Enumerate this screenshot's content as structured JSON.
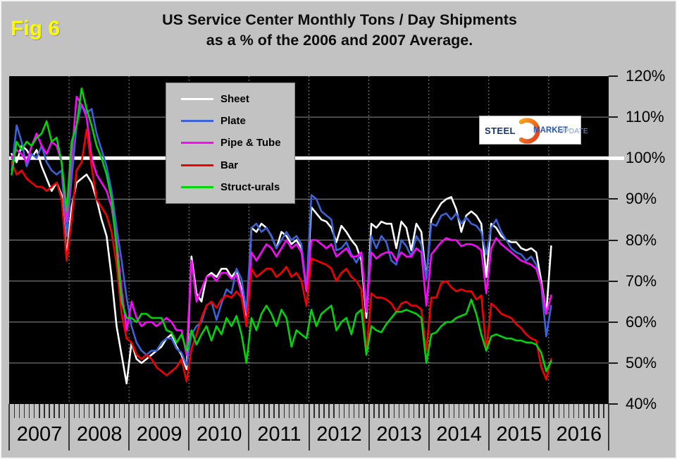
{
  "figure": {
    "fig_label": "Fig 6",
    "title_line1": "US Service Center Monthly Tons / Day Shipments",
    "title_line2": "as a % of the 2006 and 2007 Average."
  },
  "logo": {
    "word1": "STEEL",
    "word2": "MARKET",
    "word3": "UPDATE"
  },
  "chart_data": {
    "type": "line",
    "title": "US Service Center Monthly Tons / Day Shipments as a % of the 2006 and 2007 Average.",
    "legend_position": "top-left",
    "plot_background": "#000000",
    "x": {
      "interval": "monthly",
      "start": "2007-01",
      "end": "2016-01",
      "year_labels": [
        "2007",
        "2008",
        "2009",
        "2010",
        "2011",
        "2012",
        "2013",
        "2014",
        "2015",
        "2016"
      ]
    },
    "y": {
      "min": 40,
      "max": 120,
      "tick_step": 10,
      "tick_labels": [
        "120%",
        "110%",
        "100%",
        "90%",
        "80%",
        "70%",
        "60%",
        "50%",
        "40%"
      ],
      "grid_values": [
        110,
        90,
        80,
        70,
        60,
        50
      ],
      "reference_line_value": 100
    },
    "series": [
      {
        "name": "Sheet",
        "color": "#ffffff",
        "values": [
          101,
          99,
          103,
          102,
          100,
          102,
          98,
          95,
          92,
          94,
          91,
          76,
          88,
          94,
          95,
          96,
          94,
          90,
          85,
          81,
          71,
          59,
          52,
          45,
          55,
          51,
          50,
          51,
          52,
          53,
          54,
          56,
          57,
          54,
          52,
          48.5,
          76,
          67,
          65,
          71,
          72,
          71,
          73,
          73,
          71,
          72.5,
          68,
          59.5,
          83,
          82,
          84,
          83,
          81,
          78,
          82,
          81,
          79,
          80,
          78,
          67.5,
          88,
          86.5,
          85,
          84.5,
          83,
          79.5,
          83.5,
          82,
          80,
          78.5,
          75,
          61,
          84,
          83,
          84.5,
          84,
          84,
          78,
          84.5,
          83,
          77.5,
          84,
          82,
          70.5,
          85,
          87,
          89,
          90,
          90.5,
          87.5,
          82,
          86,
          87,
          86,
          84,
          71,
          84,
          83,
          81,
          80,
          79.5,
          79.5,
          78,
          77.5,
          78,
          77,
          70,
          62,
          78.5
        ]
      },
      {
        "name": "Plate",
        "color": "#3b63d6",
        "values": [
          97,
          108,
          104,
          98,
          101,
          100,
          103,
          99,
          97,
          96,
          97,
          81,
          95,
          108,
          113,
          111,
          112,
          106,
          102,
          98,
          92,
          83,
          75,
          66,
          59,
          55,
          53,
          52,
          53,
          53,
          55,
          56,
          56,
          53.5,
          52.5,
          49.5,
          57,
          59,
          60,
          64,
          65,
          60.5,
          64.5,
          68,
          67,
          73,
          70.5,
          62.5,
          83,
          84,
          82,
          83,
          81,
          78,
          80,
          82,
          80,
          81,
          79,
          68,
          91,
          90,
          87,
          86,
          85,
          77.5,
          78,
          79.5,
          76.5,
          74.5,
          77,
          62.5,
          81,
          78,
          81,
          79.5,
          75,
          74,
          80,
          78.5,
          76,
          81,
          79,
          70.5,
          84,
          83.5,
          86,
          86.5,
          85,
          86.5,
          84,
          85.5,
          84,
          83.5,
          82,
          76.5,
          83,
          85,
          82,
          80,
          78,
          77,
          76.5,
          75,
          76,
          74,
          69,
          56.5,
          64
        ]
      },
      {
        "name": "Pipe & Tube",
        "color": "#fa08fa",
        "values": [
          100,
          102,
          101,
          99,
          103,
          106,
          103,
          101,
          104,
          103,
          99,
          84.5,
          100,
          115,
          113,
          110,
          100,
          96,
          94,
          92,
          88,
          80,
          68,
          58,
          65,
          61,
          59,
          60,
          60,
          59,
          60,
          61,
          60,
          58,
          58,
          52,
          75,
          65,
          68,
          71,
          71.5,
          70,
          72,
          72,
          70.5,
          71.5,
          67,
          59,
          77,
          75,
          77,
          79,
          78,
          76,
          78,
          80,
          78,
          79,
          77,
          67.5,
          80,
          80,
          79,
          78,
          79,
          76,
          77,
          78,
          76,
          76,
          77,
          62.5,
          77,
          75.5,
          76.5,
          77,
          77,
          75,
          77,
          76,
          76,
          78,
          77,
          64,
          76.5,
          78,
          79.5,
          80.5,
          80,
          80,
          78.5,
          79,
          79,
          78.5,
          77.5,
          67,
          78,
          80.5,
          79,
          78,
          77,
          76,
          75,
          74.5,
          74,
          73,
          69,
          62,
          66.5
        ]
      },
      {
        "name": "Bar",
        "color": "#f40000",
        "values": [
          99,
          96,
          97,
          95,
          94,
          93,
          93,
          92,
          93,
          94,
          90,
          75,
          85,
          97,
          99,
          107,
          98,
          90,
          88,
          86,
          82,
          74,
          62,
          56,
          55,
          52,
          51,
          52,
          51,
          49,
          48,
          47,
          48,
          49,
          51,
          45.5,
          53.5,
          57,
          61,
          64,
          65,
          63.5,
          65.5,
          66.5,
          66,
          67.5,
          66,
          59,
          73,
          71,
          72,
          73,
          73,
          71,
          72,
          73.5,
          71,
          72,
          70,
          64,
          75.5,
          75,
          74.5,
          74,
          73,
          70,
          72,
          73,
          71,
          70,
          68,
          52.5,
          67,
          66,
          66,
          65.5,
          64.5,
          62.5,
          64.5,
          65,
          64,
          64,
          63,
          53,
          66,
          66,
          69.5,
          70,
          68.5,
          67.5,
          68,
          67.5,
          67.5,
          65.5,
          66.5,
          53,
          64.5,
          63.5,
          62,
          61.5,
          61,
          59.5,
          58.5,
          57,
          56,
          55.5,
          49,
          46,
          51
        ]
      },
      {
        "name": "Struct-urals",
        "color": "#00d40a",
        "values": [
          96,
          104,
          102,
          104,
          103,
          105,
          106,
          109,
          104,
          105,
          99,
          87,
          104,
          108,
          117,
          112,
          108,
          103,
          100,
          96,
          90,
          78,
          65,
          61,
          61,
          60,
          62,
          62,
          61,
          61,
          61,
          58,
          57.5,
          55,
          57,
          53,
          58,
          54.5,
          57,
          59,
          55.5,
          59,
          57,
          61,
          59,
          61.5,
          57,
          50,
          61,
          58,
          62,
          64,
          62,
          59,
          63,
          61,
          54,
          58,
          57,
          56,
          63,
          59,
          62,
          63,
          64,
          58,
          60,
          61,
          57,
          62,
          63,
          52,
          59,
          58,
          57.5,
          59.5,
          61,
          62.5,
          62.5,
          63,
          62.5,
          62,
          61,
          50,
          57,
          57.5,
          59,
          60,
          60,
          61,
          61.5,
          62,
          65.5,
          62,
          57,
          53,
          56.5,
          57,
          56.5,
          56,
          56,
          55.5,
          55.5,
          55,
          55,
          54.5,
          52.5,
          48,
          50.5
        ]
      }
    ]
  }
}
